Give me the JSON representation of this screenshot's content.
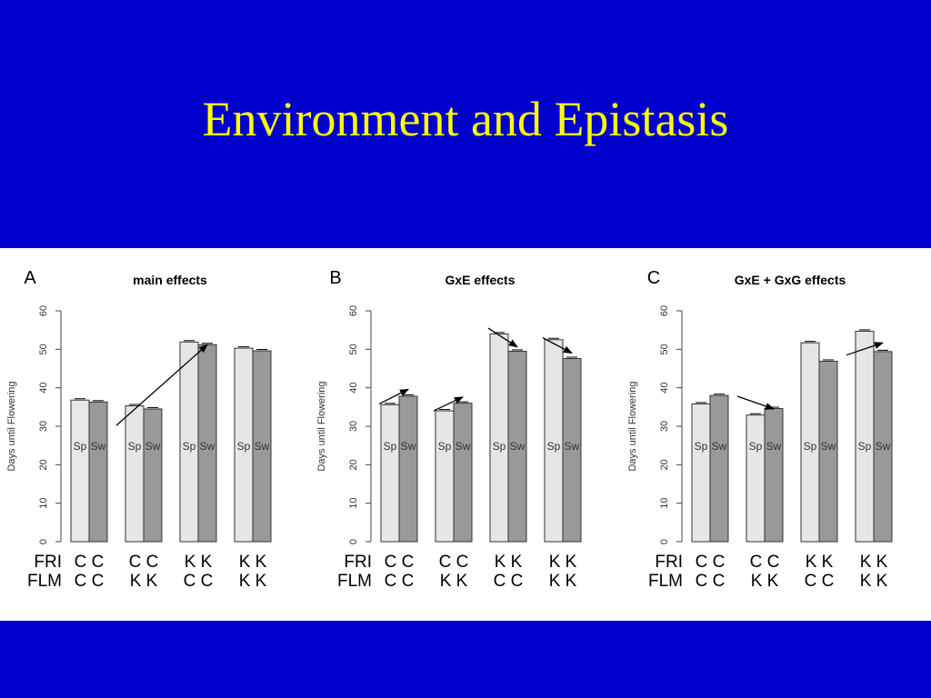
{
  "slide": {
    "title": "Environment and Epistasis"
  },
  "chart_data": [
    {
      "type": "bar",
      "panel_label": "A",
      "title": "main effects",
      "ylabel": "Days until Flowering",
      "ylim": [
        0,
        60
      ],
      "yticks": [
        "0",
        "10",
        "20",
        "30",
        "40",
        "50",
        "60"
      ],
      "row_labels": [
        "FRI",
        "FLM"
      ],
      "groups": [
        {
          "fri": "C C",
          "flm": "C C",
          "bars": [
            {
              "label": "Sp",
              "value": 36.8
            },
            {
              "label": "Sw",
              "value": 36.3
            }
          ]
        },
        {
          "fri": "C C",
          "flm": "K K",
          "bars": [
            {
              "label": "Sp",
              "value": 35.3
            },
            {
              "label": "Sw",
              "value": 34.5
            }
          ]
        },
        {
          "fri": "K K",
          "flm": "C C",
          "bars": [
            {
              "label": "Sp",
              "value": 51.9
            },
            {
              "label": "Sw",
              "value": 51.2
            }
          ]
        },
        {
          "fri": "K K",
          "flm": "K K",
          "bars": [
            {
              "label": "Sp",
              "value": 50.3
            },
            {
              "label": "Sw",
              "value": 49.6
            }
          ]
        }
      ],
      "arrows": [
        {
          "from": [
            0,
            30.2
          ],
          "to": [
            2,
            51.2
          ]
        }
      ]
    },
    {
      "type": "bar",
      "panel_label": "B",
      "title": "GxE effects",
      "ylabel": "Days until Flowering",
      "ylim": [
        0,
        60
      ],
      "yticks": [
        "0",
        "10",
        "20",
        "30",
        "40",
        "50",
        "60"
      ],
      "row_labels": [
        "FRI",
        "FLM"
      ],
      "groups": [
        {
          "fri": "C C",
          "flm": "C C",
          "bars": [
            {
              "label": "Sp",
              "value": 35.6
            },
            {
              "label": "Sw",
              "value": 37.8
            }
          ]
        },
        {
          "fri": "C C",
          "flm": "K K",
          "bars": [
            {
              "label": "Sp",
              "value": 34.0
            },
            {
              "label": "Sw",
              "value": 36.0
            }
          ]
        },
        {
          "fri": "K K",
          "flm": "C C",
          "bars": [
            {
              "label": "Sp",
              "value": 54.0
            },
            {
              "label": "Sw",
              "value": 49.5
            }
          ]
        },
        {
          "fri": "K K",
          "flm": "K K",
          "bars": [
            {
              "label": "Sp",
              "value": 52.5
            },
            {
              "label": "Sw",
              "value": 47.6
            }
          ]
        }
      ],
      "arrows": [
        {
          "from": [
            0,
            35.8
          ],
          "to": [
            0.5,
            39.6
          ]
        },
        {
          "from": [
            1,
            34.0
          ],
          "to": [
            1.5,
            37.6
          ]
        },
        {
          "from": [
            2,
            55.5
          ],
          "to": [
            2.5,
            50.6
          ]
        },
        {
          "from": [
            3,
            53.0
          ],
          "to": [
            3.5,
            49.0
          ]
        }
      ]
    },
    {
      "type": "bar",
      "panel_label": "C",
      "title": "GxE + GxG effects",
      "ylabel": "Days until Flowering",
      "ylim": [
        0,
        60
      ],
      "yticks": [
        "0",
        "10",
        "20",
        "30",
        "40",
        "50",
        "60"
      ],
      "row_labels": [
        "FRI",
        "FLM"
      ],
      "groups": [
        {
          "fri": "C C",
          "flm": "C C",
          "bars": [
            {
              "label": "Sp",
              "value": 35.8
            },
            {
              "label": "Sw",
              "value": 38.0
            }
          ]
        },
        {
          "fri": "C C",
          "flm": "K K",
          "bars": [
            {
              "label": "Sp",
              "value": 32.9
            },
            {
              "label": "Sw",
              "value": 34.6
            }
          ]
        },
        {
          "fri": "K K",
          "flm": "C C",
          "bars": [
            {
              "label": "Sp",
              "value": 51.7
            },
            {
              "label": "Sw",
              "value": 46.9
            }
          ]
        },
        {
          "fri": "K K",
          "flm": "K K",
          "bars": [
            {
              "label": "Sp",
              "value": 54.7
            },
            {
              "label": "Sw",
              "value": 49.4
            }
          ]
        }
      ],
      "arrows": [
        {
          "from": [
            0,
            37.8
          ],
          "to": [
            1,
            34.5
          ]
        },
        {
          "from": [
            2,
            48.5
          ],
          "to": [
            3,
            51.7
          ]
        }
      ]
    }
  ],
  "colors": {
    "background": "#0000cc",
    "title": "#ffff00",
    "sp_bar": "#e6e6e6",
    "sw_bar": "#999999"
  }
}
